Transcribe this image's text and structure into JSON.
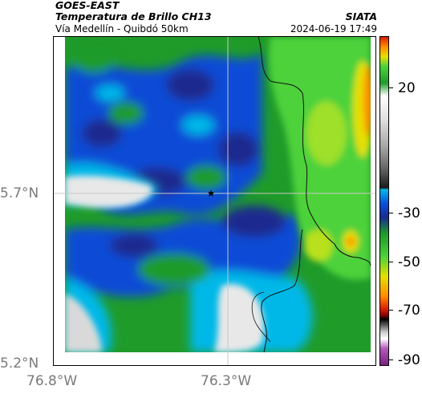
{
  "header": {
    "agency": "GOES-EAST",
    "product": "Temperatura de Brillo CH13",
    "region": "Vía Medellín - Quibdó 50km",
    "organization": "SIATA",
    "timestamp": "2024-06-19 17:49"
  },
  "axes": {
    "lat_ticks": [
      "5.7°N",
      "5.2°N"
    ],
    "lon_ticks": [
      "76.8°W",
      "76.3°W"
    ]
  },
  "colorbar": {
    "ticks": [
      "20",
      "-30",
      "-50",
      "-70",
      "-90"
    ],
    "palette": [
      "#e8e8e8",
      "#00b8e8",
      "#0c4cd6",
      "#1a2b8f",
      "#1f9b2a",
      "#4ed23a",
      "#e6e000",
      "#ff8c00",
      "#d81e00",
      "#7a0000",
      "#000000",
      "#b05ab8"
    ]
  },
  "map": {
    "marker_symbol": "★",
    "marker_label": "station-star"
  }
}
